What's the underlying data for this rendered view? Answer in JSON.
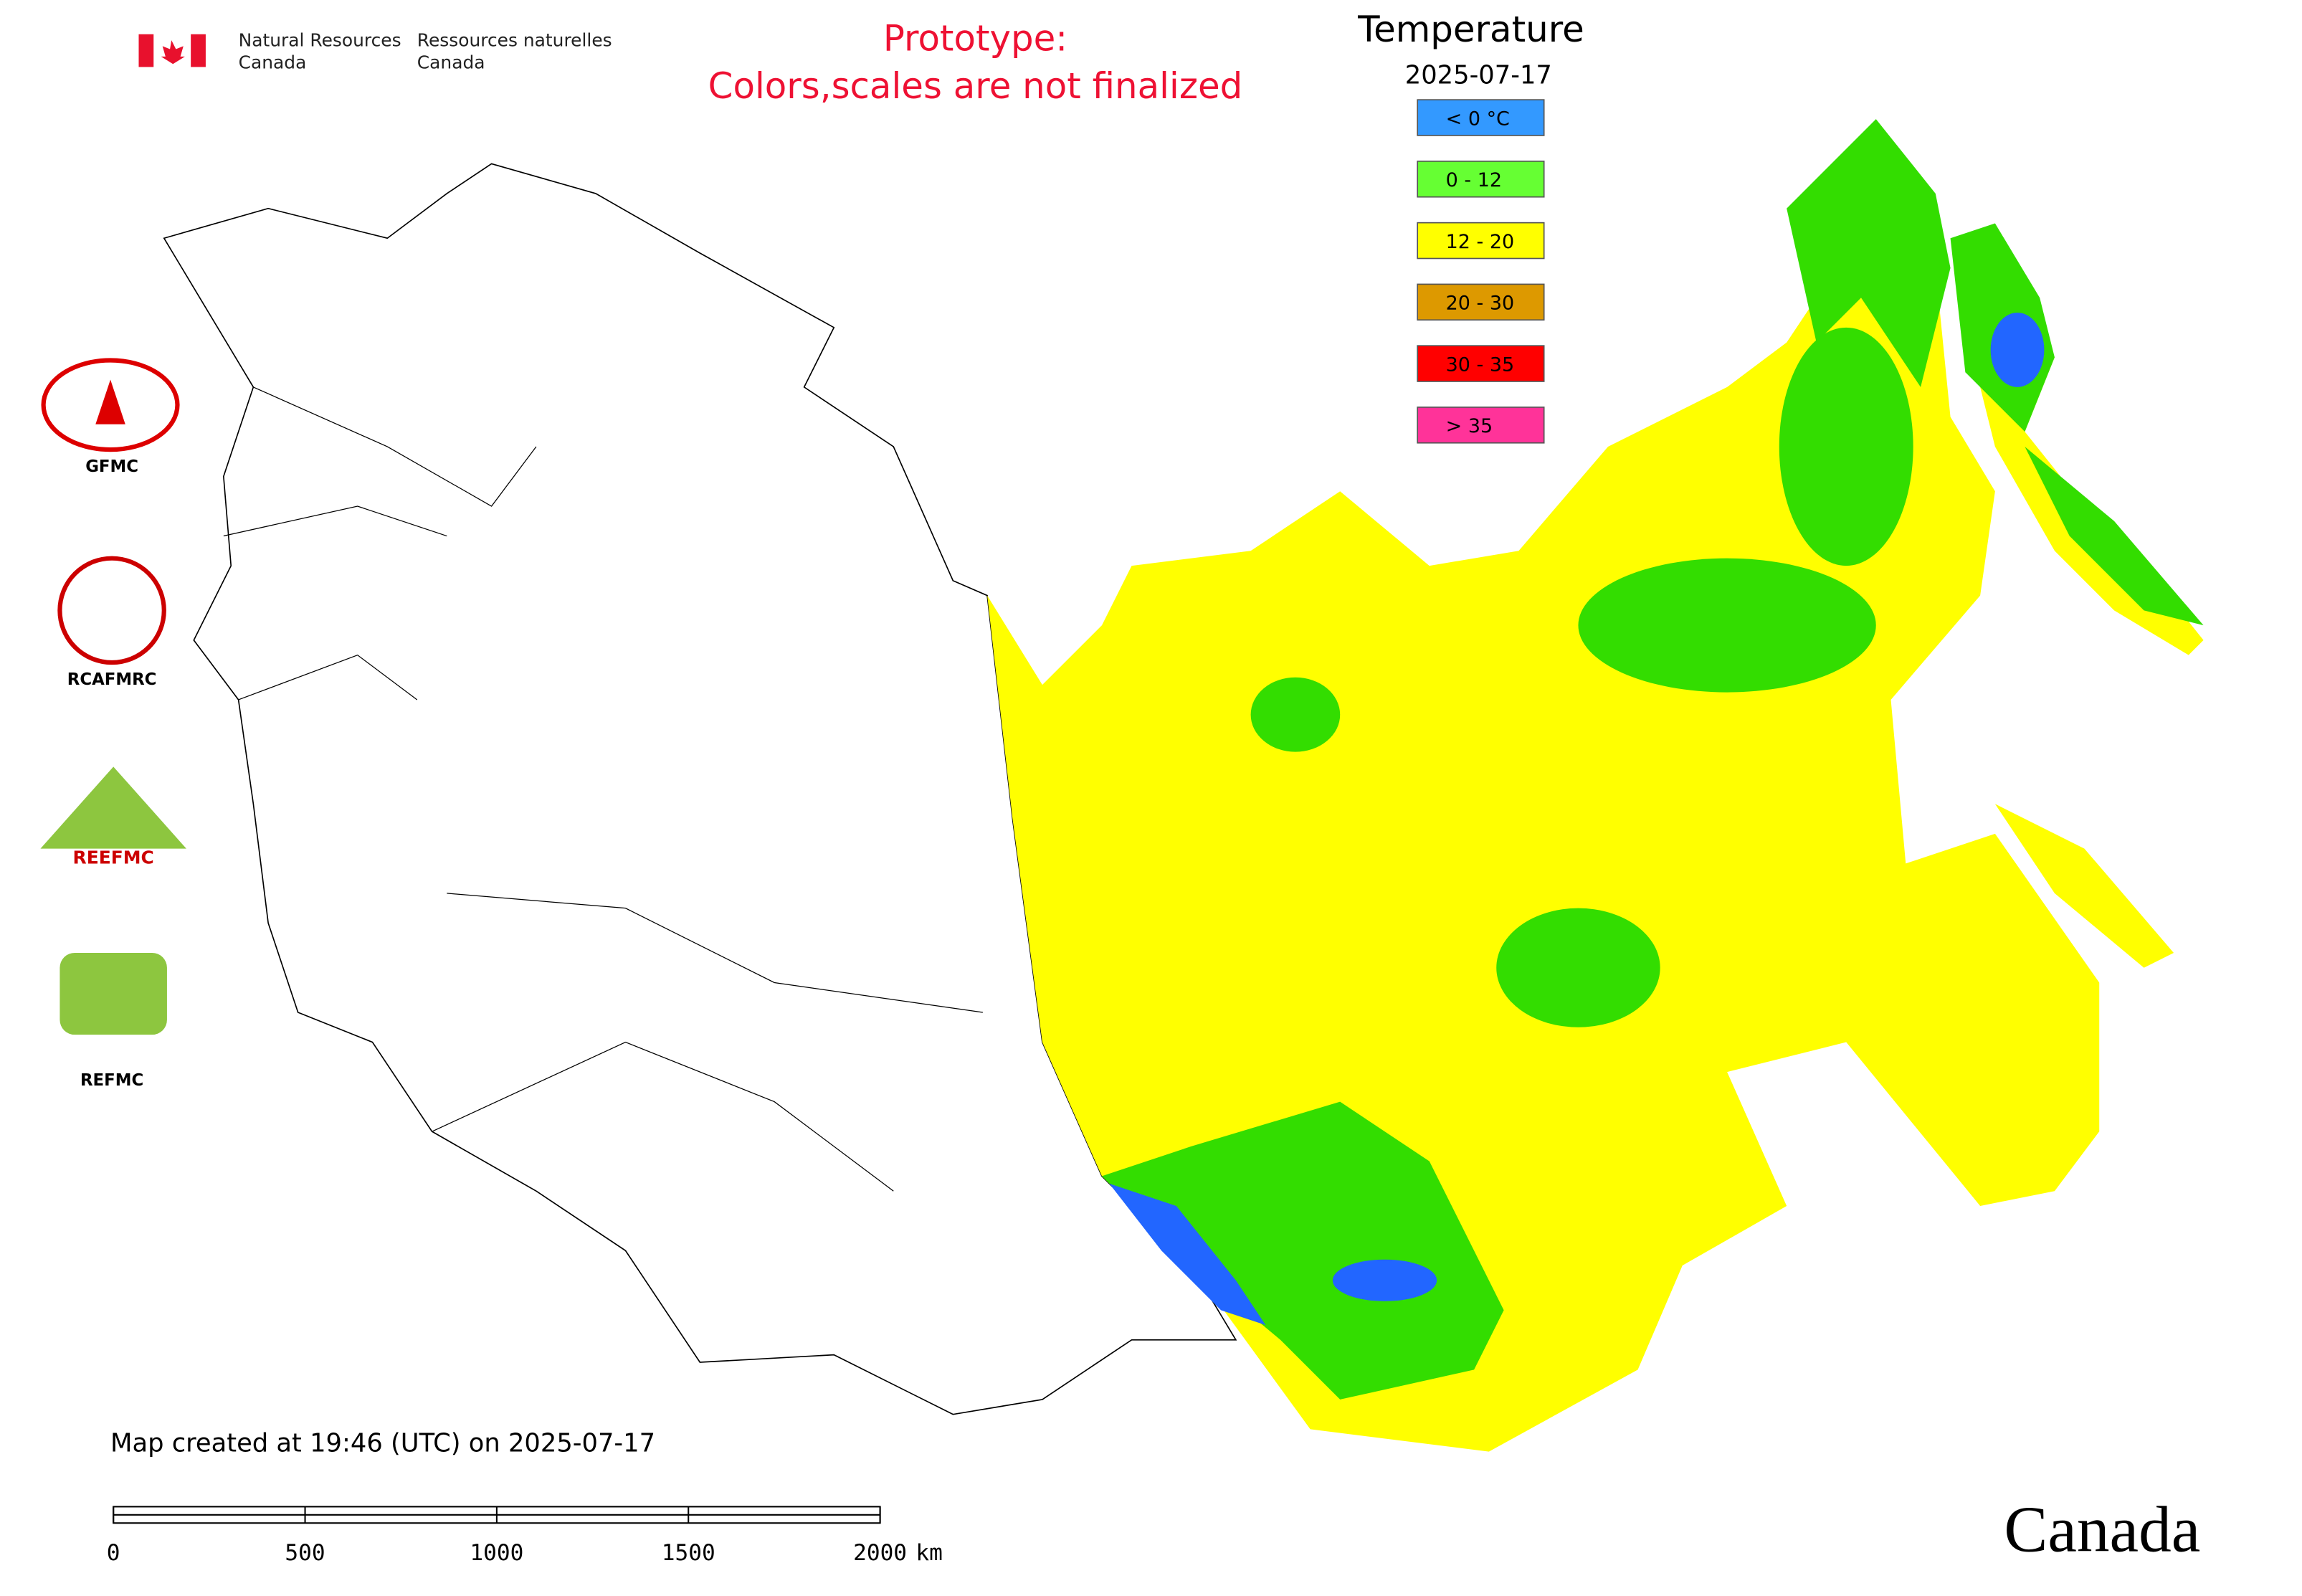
{
  "header": {
    "dept_en": [
      "Natural Resources",
      "Canada"
    ],
    "dept_fr": [
      "Ressources naturelles",
      "Canada"
    ],
    "notice": [
      "Prototype:",
      "Colors,scales are not finalized"
    ],
    "wordmark": "Canada"
  },
  "legend": {
    "title": "Temperature",
    "date": "2025-07-17",
    "items": [
      {
        "label": "< 0 °C",
        "color": "#3399ff"
      },
      {
        "label": "0 - 12",
        "color": "#66ff33"
      },
      {
        "label": "12 - 20",
        "color": "#ffff00"
      },
      {
        "label": "20 - 30",
        "color": "#dd9900"
      },
      {
        "label": "30 - 35",
        "color": "#ff0000"
      },
      {
        "label": "> 35",
        "color": "#ff3399"
      }
    ]
  },
  "logos": [
    "GFMC",
    "RCAFMRC",
    "REEFMC",
    "REFMC"
  ],
  "footer": {
    "created": "Map created at 19:46 (UTC) on 2025-07-17"
  },
  "scale_bar": {
    "ticks": [
      0,
      500,
      1000,
      1500,
      2000
    ],
    "unit": "km"
  }
}
